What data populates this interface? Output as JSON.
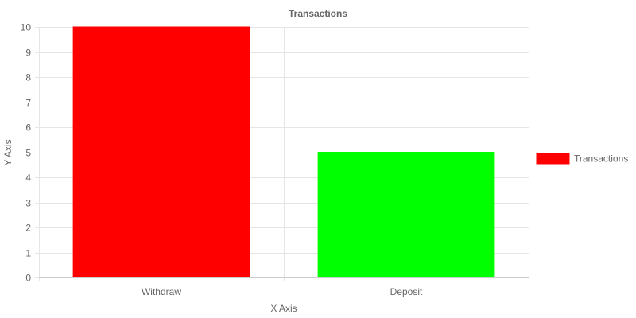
{
  "chart_data": {
    "type": "bar",
    "title": "Transactions",
    "xlabel": "X Axis",
    "ylabel": "Y Axis",
    "categories": [
      "Withdraw",
      "Deposit"
    ],
    "series": [
      {
        "name": "Transactions",
        "values": [
          10,
          5
        ],
        "colors": [
          "#ff0000",
          "#00ff00"
        ]
      }
    ],
    "ylim": [
      0,
      10
    ],
    "yticks": [
      0,
      1,
      2,
      3,
      4,
      5,
      6,
      7,
      8,
      9,
      10
    ],
    "grid": true,
    "legend_position": "right",
    "legend_color": "#ff0000",
    "gridline_color": "#e5e5e5",
    "axis_line_color": "#cccccc",
    "text_color": "#666666"
  }
}
